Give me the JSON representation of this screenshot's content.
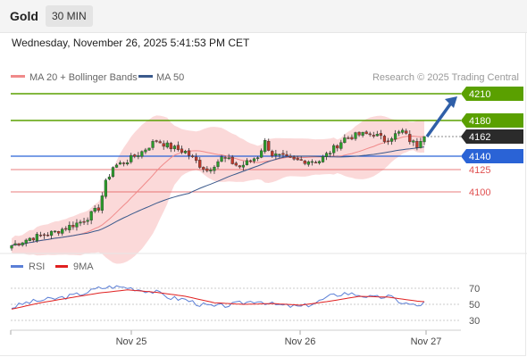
{
  "header": {
    "title": "Gold",
    "timeframe": "30 MIN",
    "datetime": "Wednesday, November 26, 2025 5:41:53 PM CET"
  },
  "colors": {
    "up_candle": "#2a9d2a",
    "down_candle": "#c0392b",
    "bollinger_fill": "#fbd5d5",
    "ma20": "#f08a8a",
    "ma50": "#3b5a8c",
    "green_level": "#5aa000",
    "blue_level": "#2a63d6",
    "red_level": "#e05050",
    "current_price": "#2b2b2b",
    "rsi": "#5b7fd6",
    "rsi_ma": "#e02020",
    "arrow": "#2f5fa8"
  },
  "chart_data": [
    {
      "type": "candlestick",
      "legend": [
        {
          "name": "MA 20 + Bollinger Bands",
          "color": "#f08a8a"
        },
        {
          "name": "MA 50",
          "color": "#3b5a8c"
        }
      ],
      "source": "Research © 2025 Trading Central",
      "ylim": [
        4030,
        4220
      ],
      "x_ticks": [
        "Nov 25",
        "Nov 26",
        "Nov 27"
      ],
      "candle_count": 115,
      "levels": [
        {
          "label": "4210",
          "value": 4210,
          "style": "green"
        },
        {
          "label": "4180",
          "value": 4180,
          "style": "green"
        },
        {
          "label": "4162",
          "value": 4162,
          "style": "current"
        },
        {
          "label": "4140",
          "value": 4140,
          "style": "blue"
        },
        {
          "label": "4125",
          "value": 4125,
          "style": "red"
        },
        {
          "label": "4100",
          "value": 4100,
          "style": "red"
        }
      ],
      "price_anchors": [
        [
          0,
          4040
        ],
        [
          5,
          4048
        ],
        [
          12,
          4055
        ],
        [
          20,
          4068
        ],
        [
          24,
          4082
        ],
        [
          26,
          4110
        ],
        [
          28,
          4128
        ],
        [
          32,
          4135
        ],
        [
          36,
          4145
        ],
        [
          40,
          4158
        ],
        [
          44,
          4150
        ],
        [
          48,
          4145
        ],
        [
          50,
          4138
        ],
        [
          52,
          4130
        ],
        [
          54,
          4124
        ],
        [
          58,
          4138
        ],
        [
          60,
          4135
        ],
        [
          63,
          4128
        ],
        [
          68,
          4140
        ],
        [
          70,
          4156
        ],
        [
          72,
          4142
        ],
        [
          78,
          4135
        ],
        [
          85,
          4135
        ],
        [
          88,
          4145
        ],
        [
          92,
          4160
        ],
        [
          96,
          4164
        ],
        [
          100,
          4165
        ],
        [
          103,
          4158
        ],
        [
          108,
          4168
        ],
        [
          110,
          4158
        ],
        [
          112,
          4152
        ],
        [
          113,
          4160
        ],
        [
          115,
          4162
        ]
      ],
      "projection": {
        "from": 4162,
        "to": 4210
      }
    },
    {
      "type": "line",
      "title": "RSI",
      "series": [
        {
          "name": "RSI",
          "color": "#5b7fd6"
        },
        {
          "name": "9MA",
          "color": "#e02020"
        }
      ],
      "y_ticks": [
        70,
        50,
        30
      ],
      "ylim": [
        20,
        80
      ],
      "rsi_anchors": [
        [
          0,
          46
        ],
        [
          4,
          52
        ],
        [
          8,
          55
        ],
        [
          12,
          57
        ],
        [
          16,
          60
        ],
        [
          20,
          64
        ],
        [
          24,
          70
        ],
        [
          28,
          72
        ],
        [
          32,
          71
        ],
        [
          36,
          68
        ],
        [
          40,
          65
        ],
        [
          44,
          58
        ],
        [
          48,
          56
        ],
        [
          52,
          50
        ],
        [
          56,
          47
        ],
        [
          60,
          49
        ],
        [
          64,
          52
        ],
        [
          68,
          55
        ],
        [
          72,
          50
        ],
        [
          76,
          48
        ],
        [
          80,
          47
        ],
        [
          84,
          52
        ],
        [
          88,
          60
        ],
        [
          92,
          64
        ],
        [
          96,
          62
        ],
        [
          100,
          58
        ],
        [
          104,
          60
        ],
        [
          108,
          52
        ],
        [
          112,
          48
        ],
        [
          115,
          54
        ]
      ],
      "ma_anchors": [
        [
          0,
          44
        ],
        [
          8,
          52
        ],
        [
          16,
          58
        ],
        [
          24,
          64
        ],
        [
          32,
          68
        ],
        [
          40,
          65
        ],
        [
          48,
          60
        ],
        [
          56,
          52
        ],
        [
          64,
          50
        ],
        [
          72,
          51
        ],
        [
          80,
          49
        ],
        [
          88,
          54
        ],
        [
          96,
          60
        ],
        [
          104,
          59
        ],
        [
          112,
          54
        ],
        [
          115,
          53
        ]
      ]
    }
  ]
}
